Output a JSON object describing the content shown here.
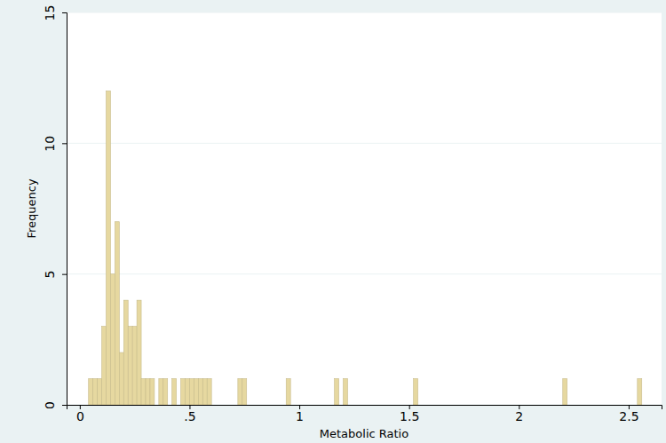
{
  "chart_data": {
    "type": "histogram",
    "x_label": "Metabolic Ratio",
    "y_label": "Frequency",
    "bins": [
      0.04,
      0.06,
      0.08,
      0.1,
      0.12,
      0.14,
      0.16,
      0.18,
      0.2,
      0.22,
      0.24,
      0.26,
      0.28,
      0.3,
      0.32,
      0.34,
      0.36,
      0.38,
      0.4,
      0.42,
      0.44,
      0.46,
      0.48,
      0.5,
      0.52,
      0.54,
      0.56,
      0.58,
      0.6,
      0.62,
      0.64,
      0.66,
      0.68,
      0.7,
      0.72,
      0.74,
      0.76,
      0.78,
      0.8,
      0.82,
      0.84,
      0.86,
      0.88,
      0.9,
      0.92,
      0.94,
      0.96,
      0.98,
      1,
      1.02,
      1.04,
      1.06,
      1.08,
      1.1,
      1.12,
      1.14,
      1.16,
      1.18,
      1.2,
      1.22,
      1.24,
      1.26,
      1.28,
      1.3,
      1.32,
      1.34,
      1.36,
      1.38,
      1.4,
      1.42,
      1.44,
      1.46,
      1.48,
      1.5,
      1.52,
      1.54,
      1.56,
      1.58,
      1.6,
      1.62,
      1.64,
      1.66,
      1.68,
      1.7,
      1.72,
      1.74,
      1.76,
      1.78,
      1.8,
      1.82,
      1.84,
      1.86,
      1.88,
      1.9,
      1.92,
      1.94,
      1.96,
      1.98,
      2,
      2.02,
      2.04,
      2.06,
      2.08,
      2.1,
      2.12,
      2.14,
      2.16,
      2.18,
      2.2,
      2.22,
      2.24,
      2.26,
      2.28,
      2.3,
      2.32,
      2.34,
      2.36,
      2.38,
      2.4,
      2.42,
      2.44,
      2.46,
      2.48,
      2.5,
      2.52,
      2.54,
      2.56
    ],
    "counts": [
      1,
      1,
      1,
      3,
      12,
      5,
      7,
      2,
      4,
      3,
      3,
      4,
      1,
      1,
      1,
      0,
      1,
      1,
      0,
      1,
      0,
      1,
      1,
      1,
      1,
      1,
      1,
      1,
      0,
      0,
      0,
      0,
      0,
      0,
      1,
      1,
      0,
      0,
      0,
      0,
      0,
      0,
      0,
      0,
      0,
      1,
      0,
      0,
      0,
      0,
      0,
      0,
      0,
      0,
      0,
      0,
      1,
      0,
      1,
      0,
      0,
      0,
      0,
      0,
      0,
      0,
      0,
      0,
      0,
      0,
      0,
      0,
      0,
      0,
      1,
      0,
      0,
      0,
      0,
      0,
      0,
      0,
      0,
      0,
      0,
      0,
      0,
      0,
      0,
      0,
      0,
      0,
      0,
      0,
      0,
      0,
      0,
      0,
      0,
      0,
      0,
      0,
      0,
      0,
      0,
      0,
      0,
      0,
      1,
      0,
      0,
      0,
      0,
      0,
      0,
      0,
      0,
      0,
      0,
      0,
      0,
      0,
      0,
      0,
      0,
      1
    ],
    "color": "#e6d8a0",
    "xlim": [
      -0.06,
      2.65
    ],
    "xticks": [
      0,
      {
        "value": 0.5,
        "label": ".5"
      },
      1,
      1.5,
      2,
      2.5
    ],
    "ylim": [
      0,
      15
    ],
    "yticks": [
      0,
      5,
      10,
      15
    ],
    "grid": true
  }
}
